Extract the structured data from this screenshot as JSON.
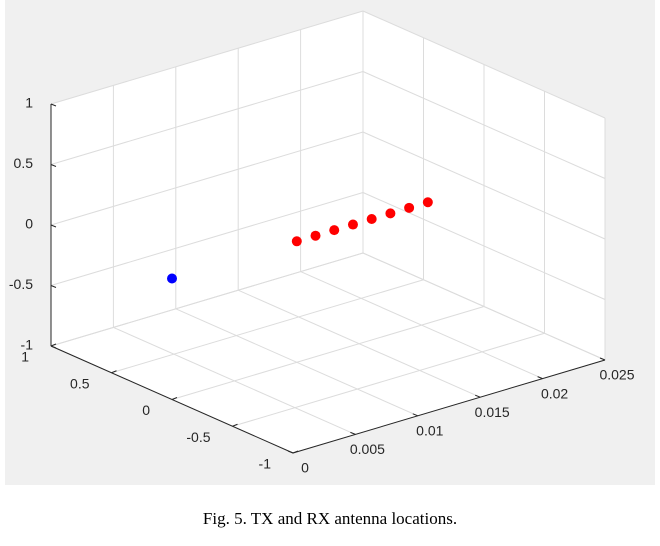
{
  "caption": "Fig. 5.   TX and RX antenna locations.",
  "chart_data": {
    "type": "scatter",
    "dims": 3,
    "title": "",
    "xlabel": "",
    "ylabel": "",
    "zlabel": "",
    "xlim": [
      0,
      0.025
    ],
    "ylim": [
      -1,
      1
    ],
    "zlim": [
      -1,
      1
    ],
    "x_ticks": [
      "0",
      "0.005",
      "0.01",
      "0.015",
      "0.02",
      "0.025"
    ],
    "y_ticks": [
      "-1",
      "-0.5",
      "0",
      "0.5",
      "1"
    ],
    "z_ticks": [
      "-1",
      "-0.5",
      "0",
      "0.5",
      "1"
    ],
    "grid": true,
    "series": [
      {
        "color": "#0000ff",
        "points": [
          {
            "x": 0,
            "y": 0,
            "z": 0
          }
        ]
      },
      {
        "color": "#ff0000",
        "points": [
          {
            "x": 0.01,
            "y": 0,
            "z": 0
          },
          {
            "x": 0.0115,
            "y": 0,
            "z": 0
          },
          {
            "x": 0.013,
            "y": 0,
            "z": 0
          },
          {
            "x": 0.0145,
            "y": 0,
            "z": 0
          },
          {
            "x": 0.016,
            "y": 0,
            "z": 0
          },
          {
            "x": 0.0175,
            "y": 0,
            "z": 0
          },
          {
            "x": 0.019,
            "y": 0,
            "z": 0
          },
          {
            "x": 0.0205,
            "y": 0,
            "z": 0
          }
        ]
      }
    ]
  }
}
